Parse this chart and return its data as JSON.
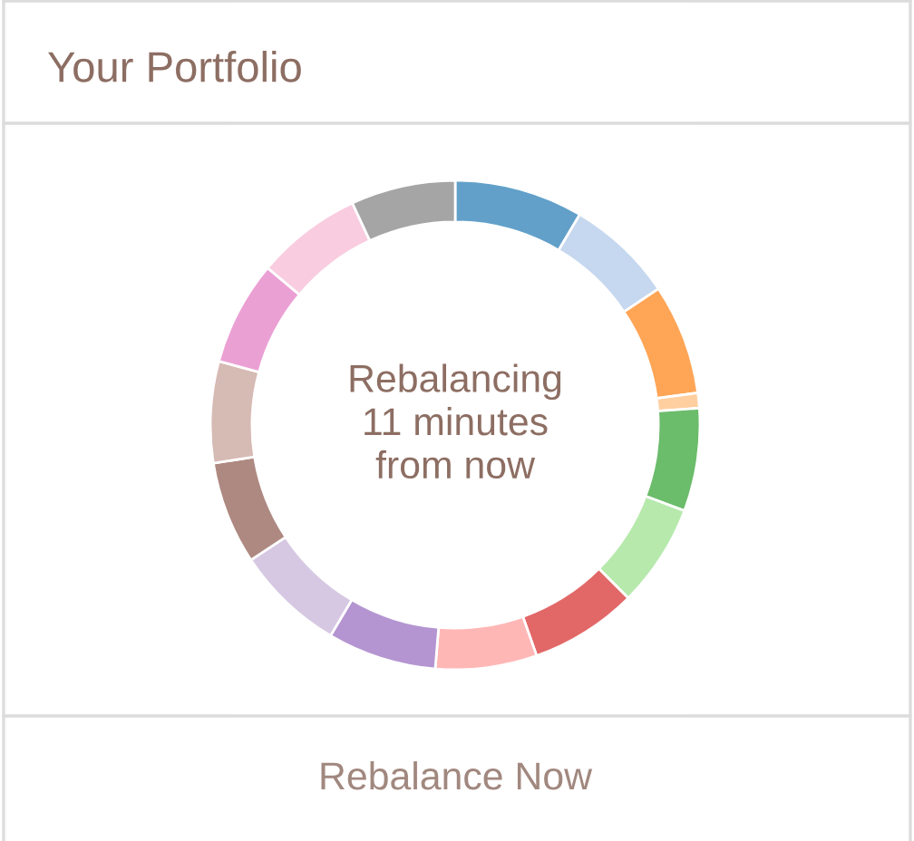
{
  "chart_data": {
    "type": "donut",
    "title": "Your Portfolio",
    "categories": [
      null,
      null,
      null,
      null,
      null,
      null,
      null,
      null,
      null,
      null,
      null,
      null,
      null,
      null,
      null
    ],
    "values": [
      8.5,
      7.1,
      7.3,
      1.0,
      6.8,
      6.8,
      7.1,
      6.7,
      7.2,
      7.2,
      6.8,
      6.7,
      6.9,
      7.0,
      6.9
    ],
    "colors": [
      "#62a0ca",
      "#c6d8ef",
      "#ffa556",
      "#ffcfa0",
      "#6bbc6b",
      "#b7e9ad",
      "#e26868",
      "#ffb7b6",
      "#b495d1",
      "#d6c8e2",
      "#ae8981",
      "#d6bab4",
      "#eba0d4",
      "#f9cce0",
      "#a5a5a5"
    ],
    "annotations": [
      "Rebalancing\n11 minutes\nfrom now",
      "Rebalance Now"
    ]
  }
}
